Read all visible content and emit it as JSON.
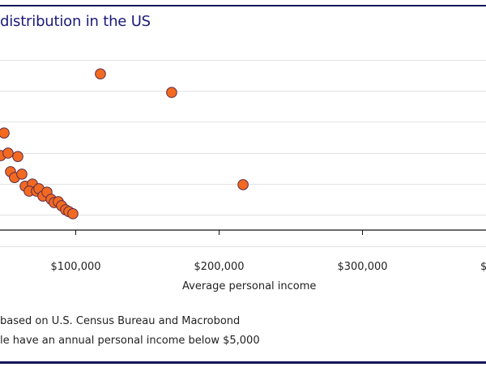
{
  "chart_data": {
    "type": "scatter",
    "title": "distribution in the US",
    "xlabel": "Average personal income",
    "ylabel": "",
    "x_ticks": [
      {
        "value": 100000,
        "label": "$100,000"
      },
      {
        "value": 200000,
        "label": "$200,000"
      },
      {
        "value": 300000,
        "label": "$300,000"
      },
      {
        "value": 400000,
        "label": "$"
      }
    ],
    "y_gridlines": [
      0,
      1,
      2,
      3,
      4,
      5
    ],
    "y_units_note": "y in gridline steps (axis labels cropped)",
    "grid": true,
    "marker_color": "#f26a21",
    "marker_edge": "#5a2a4a",
    "series": [
      {
        "name": "points",
        "points": [
          {
            "x": 117500,
            "y": 4.55
          },
          {
            "x": 167200,
            "y": 3.95
          },
          {
            "x": 217000,
            "y": 0.97
          },
          {
            "x": 50300,
            "y": 2.64
          },
          {
            "x": 48000,
            "y": 1.91
          },
          {
            "x": 53100,
            "y": 1.99
          },
          {
            "x": 59900,
            "y": 1.88
          },
          {
            "x": 54800,
            "y": 1.39
          },
          {
            "x": 57600,
            "y": 1.2
          },
          {
            "x": 62700,
            "y": 1.31
          },
          {
            "x": 65000,
            "y": 0.92
          },
          {
            "x": 70100,
            "y": 0.99
          },
          {
            "x": 67800,
            "y": 0.76
          },
          {
            "x": 72900,
            "y": 0.76
          },
          {
            "x": 74600,
            "y": 0.84
          },
          {
            "x": 77400,
            "y": 0.6
          },
          {
            "x": 80200,
            "y": 0.73
          },
          {
            "x": 83100,
            "y": 0.5
          },
          {
            "x": 85300,
            "y": 0.39
          },
          {
            "x": 88100,
            "y": 0.42
          },
          {
            "x": 90400,
            "y": 0.29
          },
          {
            "x": 93200,
            "y": 0.16
          },
          {
            "x": 95500,
            "y": 0.1
          },
          {
            "x": 98300,
            "y": 0.03
          }
        ]
      }
    ]
  },
  "notes": {
    "source": "based on U.S. Census Bureau and Macrobond",
    "footnote": "le have an annual personal income below $5,000"
  },
  "colors": {
    "frame": "#14145a",
    "title": "#1a1a7a",
    "gridline": "#e3e3e3"
  }
}
